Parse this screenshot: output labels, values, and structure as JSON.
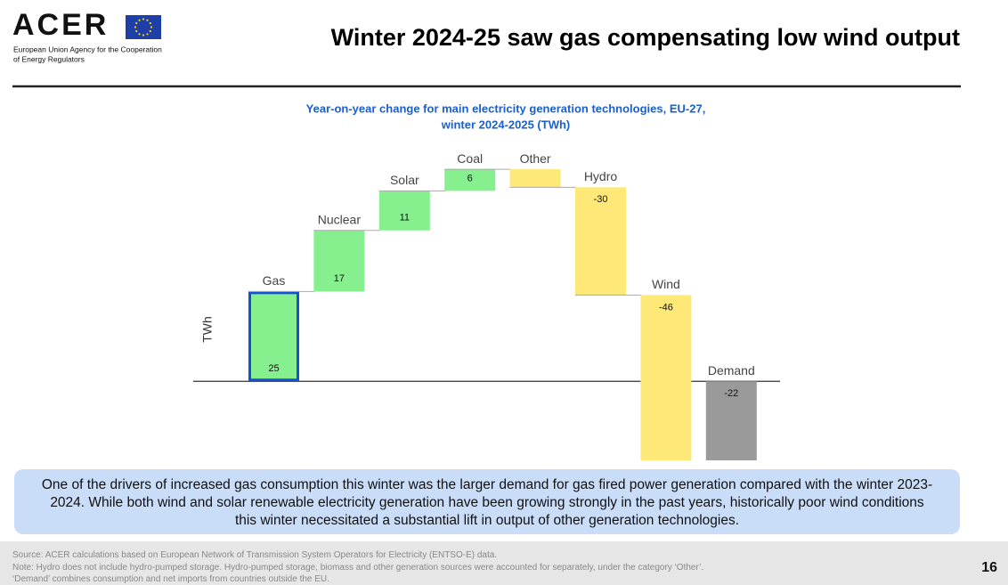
{
  "header": {
    "logo": "ACER",
    "agency": [
      "European Union Agency for the Cooperation",
      "of Energy Regulators"
    ],
    "title": "Winter 2024-25 saw gas compensating low wind output"
  },
  "chart_data": {
    "type": "waterfall",
    "title": [
      "Year-on-year change for main electricity generation technologies, EU-27,",
      "winter 2024-2025 (TWh)"
    ],
    "y_label": "TWh",
    "categories": [
      "Gas",
      "Nuclear",
      "Solar",
      "Coal",
      "Other",
      "Hydro",
      "Wind",
      "Demand"
    ],
    "values": [
      25,
      17,
      11,
      6,
      -5,
      -30,
      -46,
      -22
    ],
    "value_labels": [
      "25",
      "17",
      "11",
      "6",
      null,
      "-30",
      "-46",
      "-22"
    ],
    "colors": [
      "#86f08f",
      "#86f08f",
      "#86f08f",
      "#86f08f",
      "#fde878",
      "#fde878",
      "#fde878",
      "#9a9a9a"
    ],
    "last_is_total": true,
    "highlight_index": 0,
    "highlight_color": "#1550d8",
    "ylim": [
      -22,
      63
    ]
  },
  "summary": "One of the drivers of increased gas consumption this winter was the larger demand for gas fired power generation compared with the winter 2023-2024. While both wind and solar renewable electricity generation have been growing strongly in the past years, historically poor wind conditions this winter necessitated a substantial lift in output of other generation technologies.",
  "footer": {
    "notes": [
      "Source: ACER calculations based on European Network of Transmission System Operators for Electricity (ENTSO-E) data.",
      "Note: Hydro does not include hydro-pumped storage. Hydro-pumped storage, biomass and other generation sources were accounted for separately, under the category ‘Other’.",
      "‘Demand’ combines consumption and net imports from countries outside the EU."
    ],
    "page": "16"
  }
}
